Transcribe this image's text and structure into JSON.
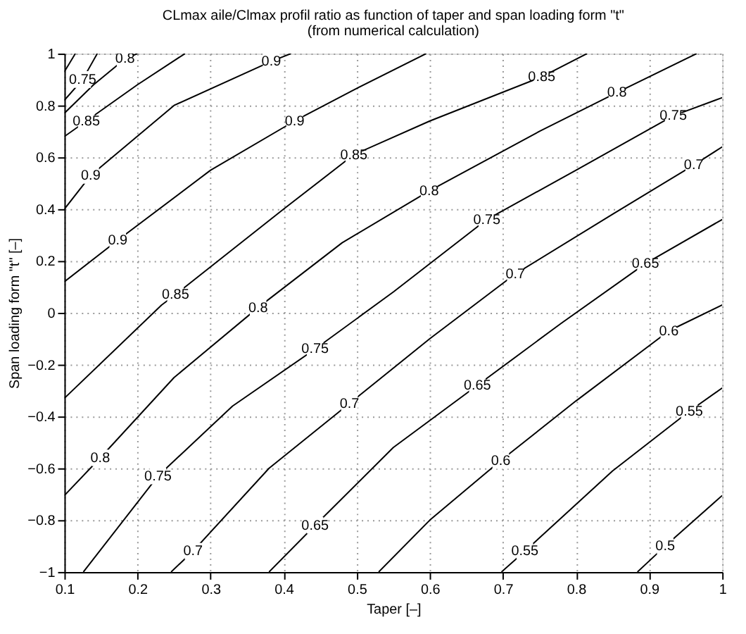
{
  "chart_data": {
    "type": "line",
    "title": "CLmax aile/Clmax profil ratio as function of taper  and span loading form \"t\"",
    "subtitle": "(from numerical calculation)",
    "xlabel": "Taper [–]",
    "ylabel": "Span loading form \"t\" [–]",
    "xlim": [
      0.1,
      1
    ],
    "ylim": [
      -1,
      1
    ],
    "xticks": [
      0.1,
      0.2,
      0.3,
      0.4,
      0.5,
      0.6,
      0.7,
      0.8,
      0.9,
      1
    ],
    "yticks": [
      -1,
      -0.8,
      -0.6,
      -0.4,
      -0.2,
      0,
      0.2,
      0.4,
      0.6,
      0.8,
      1
    ],
    "grid": true,
    "line_style": "solid",
    "marker": "none",
    "series": [
      {
        "color": "#000000",
        "x": [
          0.1,
          0.115
        ],
        "values": [
          0.93,
          1
        ]
      },
      {
        "color": "#000000",
        "x": [
          0.1,
          0.125,
          0.145
        ],
        "values": [
          0.82,
          0.9,
          1
        ]
      },
      {
        "color": "#000000",
        "x": [
          0.1,
          0.14,
          0.183,
          0.2
        ],
        "values": [
          0.77,
          0.88,
          0.98,
          1
        ]
      },
      {
        "color": "#000000",
        "x": [
          0.1,
          0.13,
          0.2,
          0.265
        ],
        "values": [
          0.68,
          0.74,
          0.88,
          1
        ]
      },
      {
        "color": "#000000",
        "x": [
          0.1,
          0.136,
          0.25,
          0.383,
          0.41
        ],
        "values": [
          0.4,
          0.53,
          0.8,
          0.97,
          1
        ]
      },
      {
        "color": "#000000",
        "x": [
          0.1,
          0.173,
          0.3,
          0.415,
          0.496,
          0.595
        ],
        "values": [
          0.12,
          0.28,
          0.55,
          0.74,
          0.86,
          1
        ]
      },
      {
        "color": "#000000",
        "x": [
          0.1,
          0.233,
          0.252,
          0.4,
          0.496,
          0.6,
          0.753,
          0.815
        ],
        "values": [
          -0.33,
          0.03,
          0.07,
          0.4,
          0.61,
          0.74,
          0.91,
          1
        ]
      },
      {
        "color": "#000000",
        "x": [
          0.1,
          0.149,
          0.25,
          0.365,
          0.48,
          0.599,
          0.75,
          0.856,
          0.965
        ],
        "values": [
          -0.705,
          -0.56,
          -0.25,
          0.02,
          0.27,
          0.47,
          0.7,
          0.85,
          1
        ]
      },
      {
        "color": "#000000",
        "x": [
          0.126,
          0.228,
          0.33,
          0.443,
          0.55,
          0.678,
          0.8,
          0.933,
          1
        ],
        "values": [
          -1,
          -0.63,
          -0.36,
          -0.14,
          0.08,
          0.36,
          0.55,
          0.76,
          0.83
        ]
      },
      {
        "color": "#000000",
        "x": [
          0.246,
          0.276,
          0.38,
          0.49,
          0.6,
          0.717,
          0.85,
          0.961,
          1
        ],
        "values": [
          -1,
          -0.92,
          -0.6,
          -0.35,
          -0.1,
          0.15,
          0.38,
          0.57,
          0.64
        ]
      },
      {
        "color": "#000000",
        "x": [
          0.38,
          0.443,
          0.55,
          0.665,
          0.78,
          0.895,
          1
        ],
        "values": [
          -1,
          -0.82,
          -0.52,
          -0.28,
          -0.04,
          0.19,
          0.36
        ]
      },
      {
        "color": "#000000",
        "x": [
          0.53,
          0.6,
          0.697,
          0.8,
          0.927,
          1
        ],
        "values": [
          -1,
          -0.8,
          -0.57,
          -0.34,
          -0.07,
          0.03
        ]
      },
      {
        "color": "#000000",
        "x": [
          0.698,
          0.73,
          0.85,
          0.955,
          1
        ],
        "values": [
          -1,
          -0.92,
          -0.61,
          -0.38,
          -0.29
        ]
      },
      {
        "color": "#000000",
        "x": [
          0.884,
          0.922,
          1
        ],
        "values": [
          -1,
          -0.9,
          -0.705
        ]
      }
    ],
    "annotations": [
      {
        "text": "0.75",
        "x": 0.125,
        "y": 0.9
      },
      {
        "text": "0.8",
        "x": 0.183,
        "y": 0.98
      },
      {
        "text": "0.85",
        "x": 0.13,
        "y": 0.74
      },
      {
        "text": "0.9",
        "x": 0.136,
        "y": 0.53
      },
      {
        "text": "0.9",
        "x": 0.383,
        "y": 0.97
      },
      {
        "text": "0.9",
        "x": 0.173,
        "y": 0.28
      },
      {
        "text": "0.9",
        "x": 0.415,
        "y": 0.74
      },
      {
        "text": "0.85",
        "x": 0.252,
        "y": 0.07
      },
      {
        "text": "0.85",
        "x": 0.496,
        "y": 0.61
      },
      {
        "text": "0.85",
        "x": 0.753,
        "y": 0.91
      },
      {
        "text": "0.8",
        "x": 0.149,
        "y": -0.56
      },
      {
        "text": "0.8",
        "x": 0.365,
        "y": 0.02
      },
      {
        "text": "0.8",
        "x": 0.599,
        "y": 0.47
      },
      {
        "text": "0.8",
        "x": 0.856,
        "y": 0.85
      },
      {
        "text": "0.75",
        "x": 0.228,
        "y": -0.63
      },
      {
        "text": "0.75",
        "x": 0.443,
        "y": -0.14
      },
      {
        "text": "0.75",
        "x": 0.678,
        "y": 0.36
      },
      {
        "text": "0.75",
        "x": 0.933,
        "y": 0.76
      },
      {
        "text": "0.7",
        "x": 0.276,
        "y": -0.92
      },
      {
        "text": "0.7",
        "x": 0.49,
        "y": -0.35
      },
      {
        "text": "0.7",
        "x": 0.717,
        "y": 0.15
      },
      {
        "text": "0.7",
        "x": 0.961,
        "y": 0.57
      },
      {
        "text": "0.65",
        "x": 0.443,
        "y": -0.82
      },
      {
        "text": "0.65",
        "x": 0.665,
        "y": -0.28
      },
      {
        "text": "0.65",
        "x": 0.895,
        "y": 0.19
      },
      {
        "text": "0.6",
        "x": 0.697,
        "y": -0.57
      },
      {
        "text": "0.6",
        "x": 0.927,
        "y": -0.07
      },
      {
        "text": "0.55",
        "x": 0.73,
        "y": -0.92
      },
      {
        "text": "0.55",
        "x": 0.955,
        "y": -0.38
      },
      {
        "text": "0.5",
        "x": 0.922,
        "y": -0.9
      }
    ]
  }
}
